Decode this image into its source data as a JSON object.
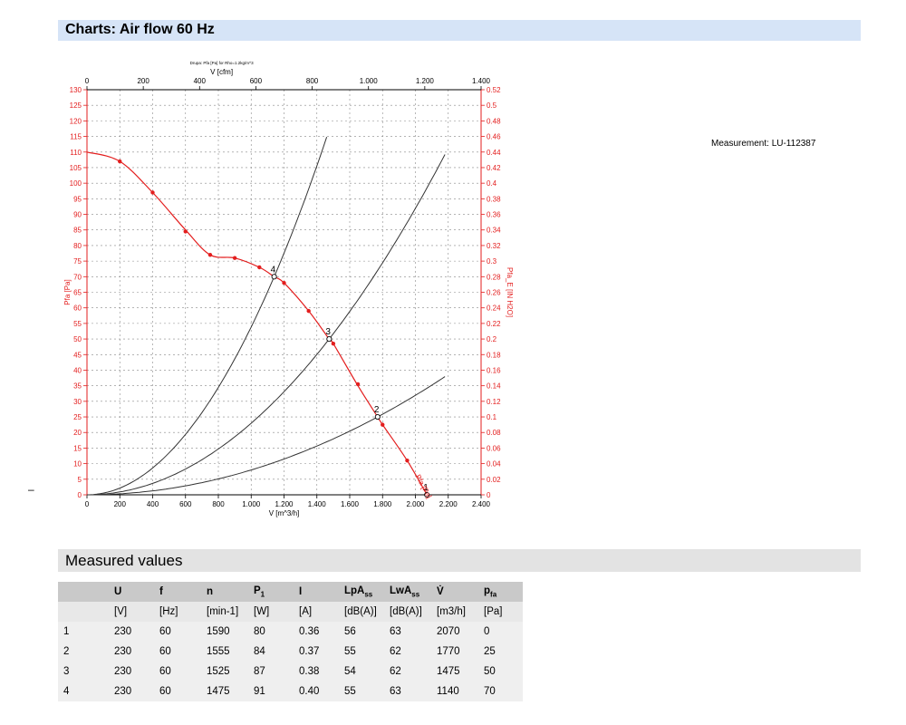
{
  "header": {
    "title": "Charts: Air flow 60 Hz"
  },
  "measurement_label": "Measurement: LU-112387",
  "dash": "–",
  "measured_values": {
    "title": "Measured values",
    "headers": [
      {
        "main": "",
        "sub": ""
      },
      {
        "main": "U",
        "sub": ""
      },
      {
        "main": "f",
        "sub": ""
      },
      {
        "main": "n",
        "sub": ""
      },
      {
        "main": "P",
        "sub": "1"
      },
      {
        "main": "I",
        "sub": ""
      },
      {
        "main": "LpA",
        "sub": "ss"
      },
      {
        "main": "LwA",
        "sub": "ss"
      },
      {
        "main": "V̇",
        "sub": ""
      },
      {
        "main": "p",
        "sub": "fa"
      }
    ],
    "units": [
      "",
      "[V]",
      "[Hz]",
      "[min-1]",
      "[W]",
      "[A]",
      "[dB(A)]",
      "[dB(A)]",
      "[m3/h]",
      "[Pa]"
    ],
    "rows": [
      [
        "1",
        "230",
        "60",
        "1590",
        "80",
        "0.36",
        "56",
        "63",
        "2070",
        "0"
      ],
      [
        "2",
        "230",
        "60",
        "1555",
        "84",
        "0.37",
        "55",
        "62",
        "1770",
        "25"
      ],
      [
        "3",
        "230",
        "60",
        "1525",
        "87",
        "0.38",
        "54",
        "62",
        "1475",
        "50"
      ],
      [
        "4",
        "230",
        "60",
        "1475",
        "91",
        "0.40",
        "55",
        "63",
        "1140",
        "70"
      ]
    ]
  },
  "chart_data": {
    "type": "line",
    "subtitle": "Drupa: Pfa [Pa] for Rho=1.2kg/m^3",
    "xlabel": "V [m^3/h]",
    "x2label": "V [cfm]",
    "ylabel": "Pfa [Pa]",
    "y2label": "Pfa_E [IN H2O]",
    "xlim": [
      0,
      2400
    ],
    "ylim": [
      0,
      130
    ],
    "x2lim": [
      0,
      1400
    ],
    "y2lim": [
      0,
      0.52
    ],
    "x_ticks": [
      "0",
      "200",
      "400",
      "600",
      "800",
      "1.000",
      "1.200",
      "1.400",
      "1.600",
      "1.800",
      "2.000",
      "2.200",
      "2.400"
    ],
    "x2_ticks": [
      "0",
      "200",
      "400",
      "600",
      "800",
      "1.000",
      "1.200",
      "1.400"
    ],
    "y_ticks": [
      "0",
      "5",
      "10",
      "15",
      "20",
      "25",
      "30",
      "35",
      "40",
      "45",
      "50",
      "55",
      "60",
      "65",
      "70",
      "75",
      "80",
      "85",
      "90",
      "95",
      "100",
      "105",
      "110",
      "115",
      "120",
      "125",
      "130"
    ],
    "y2_ticks": [
      "0",
      "0.02",
      "0.04",
      "0.06",
      "0.08",
      "0.1",
      "0.12",
      "0.14",
      "0.16",
      "0.18",
      "0.2",
      "0.22",
      "0.24",
      "0.26",
      "0.28",
      "0.3",
      "0.32",
      "0.34",
      "0.36",
      "0.38",
      "0.4",
      "0.42",
      "0.44",
      "0.46",
      "0.48",
      "0.5",
      "0.52"
    ],
    "grid": true,
    "series": [
      {
        "name": "Pfa [Pa]",
        "color": "#e31e1e",
        "points": [
          [
            0,
            110
          ],
          [
            200,
            107
          ],
          [
            400,
            97
          ],
          [
            600,
            85
          ],
          [
            750,
            77
          ],
          [
            900,
            76
          ],
          [
            1050,
            73
          ],
          [
            1140,
            70
          ],
          [
            1200,
            68
          ],
          [
            1350,
            59
          ],
          [
            1475,
            50
          ],
          [
            1500,
            48.5
          ],
          [
            1650,
            35
          ],
          [
            1770,
            25
          ],
          [
            1800,
            22.5
          ],
          [
            1950,
            11
          ],
          [
            2070,
            0
          ]
        ],
        "markers": [
          [
            200,
            107
          ],
          [
            400,
            97
          ],
          [
            600,
            84.5
          ],
          [
            750,
            77
          ],
          [
            900,
            76
          ],
          [
            1050,
            73
          ],
          [
            1200,
            68
          ],
          [
            1350,
            59
          ],
          [
            1500,
            48.5
          ],
          [
            1650,
            35.5
          ],
          [
            1800,
            22.5
          ],
          [
            1950,
            11
          ]
        ]
      }
    ],
    "system_curves": [
      {
        "k": 5.386e-05,
        "xmax": 1470
      },
      {
        "k": 2.298e-05,
        "xmax": 2180
      },
      {
        "k": 7.98e-06,
        "xmax": 2180
      }
    ],
    "operating_points": [
      {
        "label": "1",
        "x": 2070,
        "y": 0
      },
      {
        "label": "2",
        "x": 1770,
        "y": 25
      },
      {
        "label": "3",
        "x": 1475,
        "y": 50
      },
      {
        "label": "4",
        "x": 1140,
        "y": 70
      }
    ],
    "curve_label": "Pfa [Pa]"
  }
}
